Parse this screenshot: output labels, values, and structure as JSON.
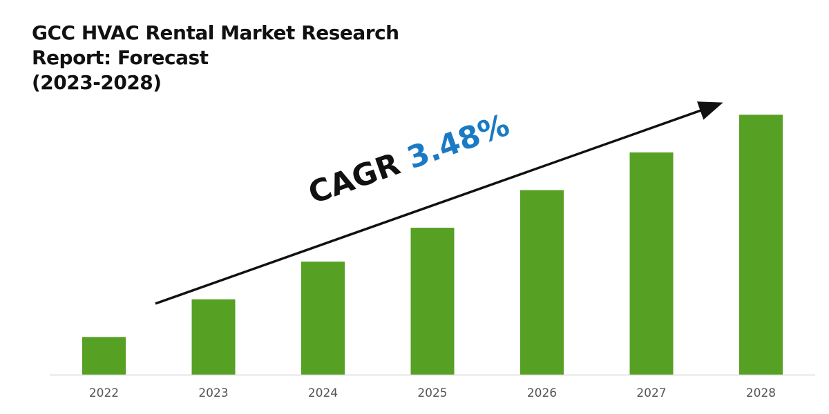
{
  "chart_data": {
    "type": "bar",
    "title_lines": [
      "GCC HVAC Rental Market Research",
      "Report: Forecast",
      "(2023-2028)"
    ],
    "categories": [
      "2022",
      "2023",
      "2024",
      "2025",
      "2026",
      "2027",
      "2028"
    ],
    "values": [
      1.0,
      2.0,
      3.0,
      3.9,
      4.9,
      5.9,
      6.9
    ],
    "value_note_units": "relative (no y-axis printed)",
    "annotation": {
      "label": "CAGR",
      "value": "3.48%"
    },
    "colors": {
      "bar": "#56a024",
      "cagr_value": "#1a7ac4",
      "axis": "#d9d9d9"
    },
    "grid": false,
    "xlabel": "",
    "ylabel": ""
  }
}
